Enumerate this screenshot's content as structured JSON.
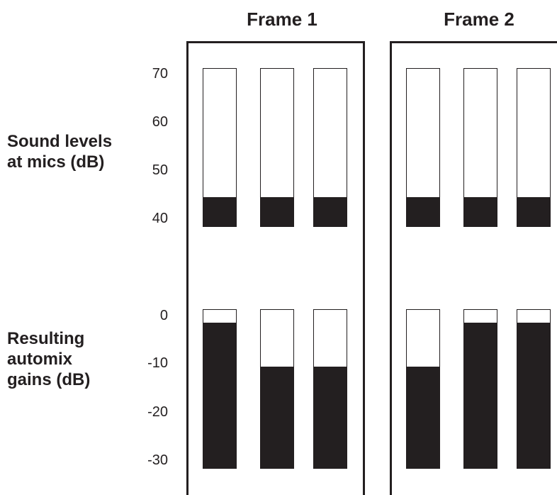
{
  "frames": [
    {
      "title": "Frame 1",
      "sound_levels_db": [
        44,
        44,
        44
      ],
      "automix_gains_db": [
        -3,
        -12,
        -12
      ]
    },
    {
      "title": "Frame 2",
      "sound_levels_db": [
        44,
        44,
        44
      ],
      "automix_gains_db": [
        -12,
        -3,
        -3
      ]
    }
  ],
  "rows": {
    "sound": {
      "label_line1": "Sound levels",
      "label_line2": "at mics (dB)",
      "ticks": [
        "70",
        "60",
        "50",
        "40"
      ],
      "range_db": [
        38,
        71
      ]
    },
    "gain": {
      "label_line1": "Resulting",
      "label_line2": "automix",
      "label_line3": "gains (dB)",
      "ticks": [
        "0",
        "-10",
        "-20",
        "-30"
      ],
      "range_db": [
        -33,
        0
      ]
    }
  },
  "colors": {
    "ink": "#231f20",
    "background": "#ffffff"
  }
}
